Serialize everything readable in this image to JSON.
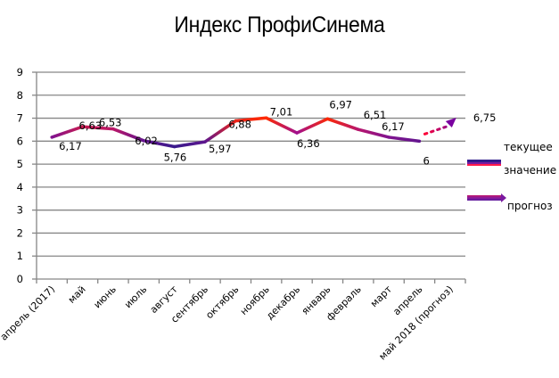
{
  "chart_data": {
    "type": "line",
    "title": "Индекс ПрофиСинема",
    "xlabel": "",
    "ylabel": "",
    "ylim": [
      0,
      9
    ],
    "yticks": [
      0,
      1,
      2,
      3,
      4,
      5,
      6,
      7,
      8,
      9
    ],
    "grid": true,
    "legend_position": "right",
    "categories": [
      "апрель (2017)",
      "май",
      "июнь",
      "июль",
      "август",
      "сентябрь",
      "октябрь",
      "ноябрь",
      "декабрь",
      "январь",
      "февраль",
      "март",
      "апрель",
      "май 2018 (прогноз)"
    ],
    "series": [
      {
        "name": "текущее значение",
        "values": [
          6.17,
          6.63,
          6.53,
          6.02,
          5.76,
          5.97,
          6.88,
          7.01,
          6.36,
          6.97,
          6.51,
          6.17,
          6,
          null
        ],
        "labels": [
          "6,17",
          "6,63",
          "6,53",
          "6,02",
          "5,76",
          "5,97",
          "6,88",
          "7,01",
          "6,36",
          "6,97",
          "6,51",
          "6,17",
          "6",
          null
        ]
      },
      {
        "name": "прогноз",
        "values": [
          null,
          null,
          null,
          null,
          null,
          null,
          null,
          null,
          null,
          null,
          null,
          null,
          6,
          6.75
        ],
        "labels": [
          null,
          null,
          null,
          null,
          null,
          null,
          null,
          null,
          null,
          null,
          null,
          null,
          null,
          "6,75"
        ]
      }
    ]
  },
  "legend": {
    "current_label_line1": "текущее",
    "current_label_line2": "значение",
    "forecast_label": "прогноз"
  },
  "colors": {
    "grid": "#868686",
    "low": "#2e1a8c",
    "mid": "#8b1a8c",
    "high": "#ff2a00",
    "forecast_start": "#ff0033",
    "forecast_end": "#7a00a0"
  }
}
